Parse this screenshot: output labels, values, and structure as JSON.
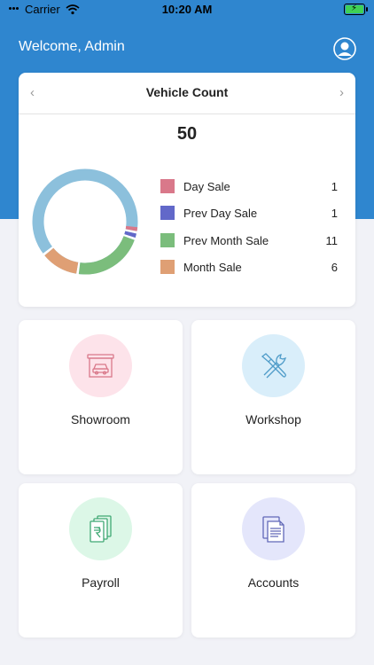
{
  "status": {
    "carrier": "Carrier",
    "time": "10:20 AM"
  },
  "header": {
    "welcome": "Welcome, Admin"
  },
  "vehicle_card": {
    "title": "Vehicle Count",
    "total": "50",
    "legend": [
      {
        "label": "Day Sale",
        "value": "1",
        "color": "#d9788a"
      },
      {
        "label": "Prev Day Sale",
        "value": "1",
        "color": "#6268c9"
      },
      {
        "label": "Prev Month Sale",
        "value": "11",
        "color": "#7bbd7c"
      },
      {
        "label": "Month Sale",
        "value": "6",
        "color": "#df9f74"
      }
    ],
    "remainder_color": "#8cc0dc"
  },
  "tiles": [
    {
      "label": "Showroom",
      "icon": "car-showroom-icon",
      "bg": "#fde3ea",
      "stroke": "#d9788a"
    },
    {
      "label": "Workshop",
      "icon": "tools-icon",
      "bg": "#d9eefa",
      "stroke": "#4f9cc9"
    },
    {
      "label": "Payroll",
      "icon": "money-stack-icon",
      "bg": "#dcf7e7",
      "stroke": "#3fa873"
    },
    {
      "label": "Accounts",
      "icon": "documents-icon",
      "bg": "#e4e6fb",
      "stroke": "#6168b8"
    }
  ]
}
